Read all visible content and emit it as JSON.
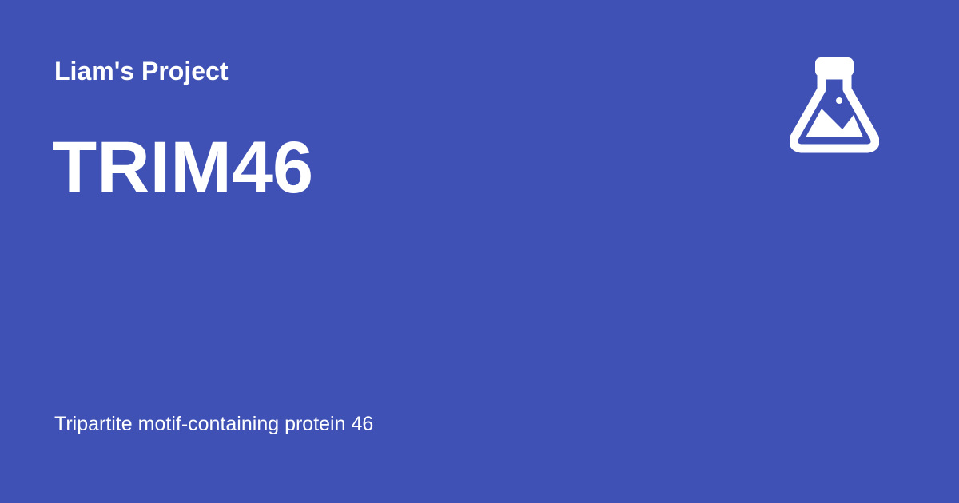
{
  "header": {
    "project_name": "Liam's Project"
  },
  "main": {
    "title": "TRIM46",
    "description": "Tripartite motif-containing protein 46"
  },
  "logo": {
    "icon": "flask-icon"
  },
  "colors": {
    "background": "#3f51b5",
    "text": "#ffffff"
  }
}
